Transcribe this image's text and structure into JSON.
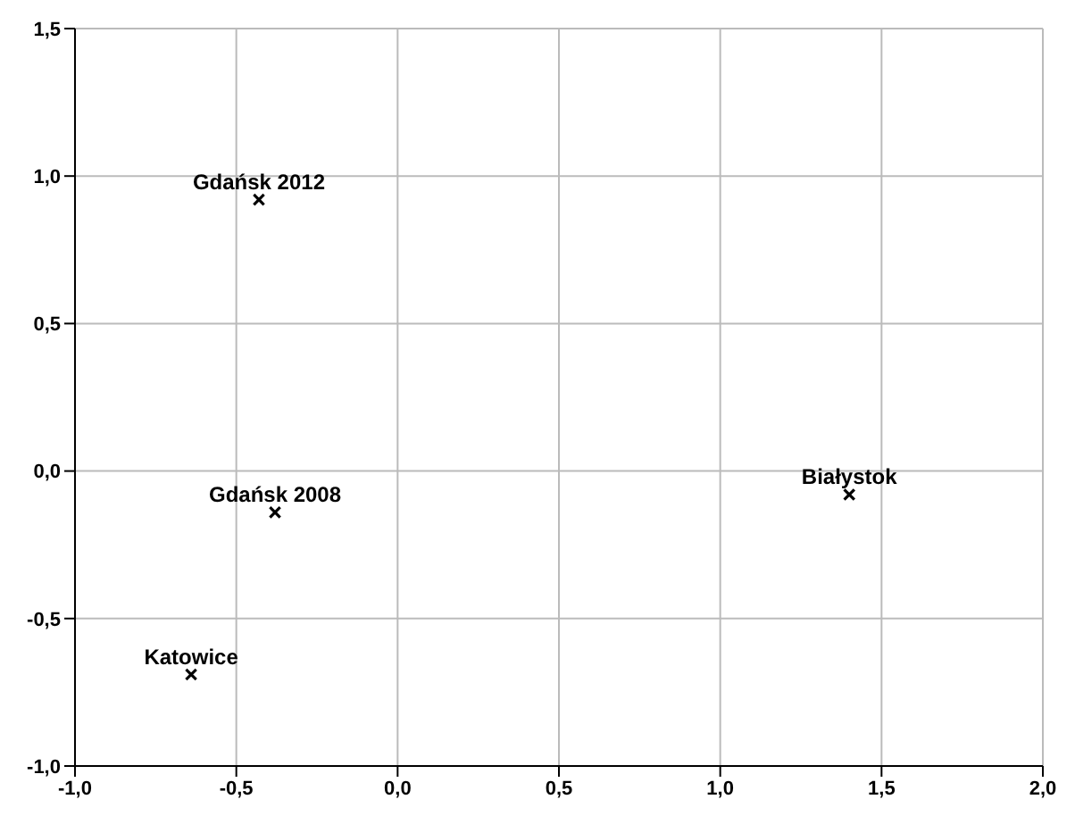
{
  "chart_data": {
    "type": "scatter",
    "x": [
      -0.43,
      -0.38,
      -0.64,
      1.4
    ],
    "values": [
      0.92,
      -0.14,
      -0.69,
      -0.08
    ],
    "color": "#000000",
    "marker": "cross",
    "grid": true,
    "xlim": [
      -1.0,
      2.0
    ],
    "xticks": [
      {
        "value": -1.0,
        "label": "-1,0"
      },
      {
        "value": -0.5,
        "label": "-0,5"
      },
      {
        "value": 0,
        "label": "0,0"
      },
      {
        "value": 0.5,
        "label": "0,5"
      },
      {
        "value": 1.0,
        "label": "1,0"
      },
      {
        "value": 1.5,
        "label": "1,5"
      },
      {
        "value": 2.0,
        "label": "2,0"
      }
    ],
    "ylim": [
      -1.0,
      1.5
    ],
    "yticks": [
      {
        "value": -1.0,
        "label": "-1,0"
      },
      {
        "value": -0.5,
        "label": "-0,5"
      },
      {
        "value": 0,
        "label": "0,0"
      },
      {
        "value": 0.5,
        "label": "0,5"
      },
      {
        "value": 1.0,
        "label": "1,0"
      },
      {
        "value": 1.5,
        "label": "1,5"
      }
    ],
    "annotations": [
      {
        "text": "Gdańsk 2012",
        "x": -0.43,
        "y": 0.92
      },
      {
        "text": "Gdańsk 2008",
        "x": -0.38,
        "y": -0.14
      },
      {
        "text": "Katowice",
        "x": -0.64,
        "y": -0.69
      },
      {
        "text": "Białystok",
        "x": 1.4,
        "y": -0.08
      }
    ]
  }
}
